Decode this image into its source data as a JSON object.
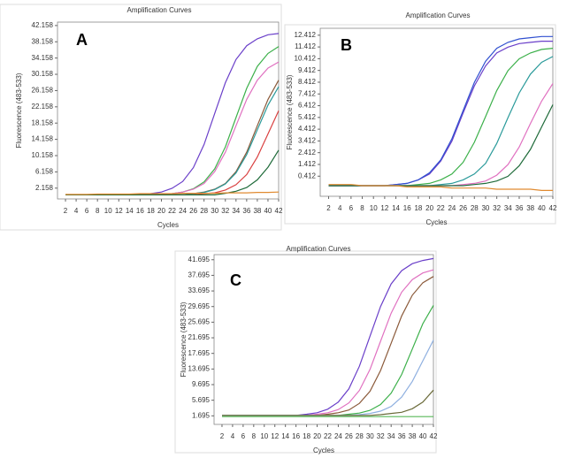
{
  "chart_data": [
    {
      "type": "line",
      "title": "Amplification Curves",
      "panel_label": "A",
      "x_label": "Cycles",
      "y_label": "Fluorescence (483-533)",
      "x": [
        2,
        4,
        6,
        8,
        10,
        12,
        14,
        16,
        18,
        20,
        22,
        24,
        26,
        28,
        30,
        32,
        34,
        36,
        38,
        40,
        42
      ],
      "xlim": [
        0.5,
        42
      ],
      "xticks": [
        2,
        4,
        6,
        8,
        10,
        12,
        14,
        16,
        18,
        20,
        22,
        24,
        26,
        28,
        30,
        32,
        34,
        36,
        38,
        40,
        42
      ],
      "ylim": [
        -0.5,
        43
      ],
      "yticks": [
        2.158,
        6.158,
        10.158,
        14.158,
        18.158,
        22.158,
        26.158,
        30.158,
        34.158,
        38.158,
        42.158
      ],
      "series": [
        {
          "color": "#6a3fc9",
          "values": [
            0.5,
            0.5,
            0.5,
            0.5,
            0.5,
            0.5,
            0.5,
            0.5,
            0.8,
            1.2,
            2.1,
            3.8,
            7.2,
            12.9,
            20.5,
            28.1,
            33.8,
            37.2,
            38.9,
            39.9,
            40.2
          ]
        },
        {
          "color": "#3cb04a",
          "values": [
            0.5,
            0.5,
            0.5,
            0.5,
            0.5,
            0.5,
            0.5,
            0.5,
            0.5,
            0.5,
            0.8,
            1.2,
            2.0,
            3.7,
            6.9,
            12.3,
            19.5,
            26.7,
            32.1,
            35.3,
            37.0
          ]
        },
        {
          "color": "#e070c0",
          "values": [
            0.5,
            0.5,
            0.5,
            0.5,
            0.5,
            0.5,
            0.5,
            0.5,
            0.5,
            0.5,
            0.8,
            1.2,
            1.9,
            3.3,
            6.2,
            11.0,
            17.5,
            24.0,
            28.7,
            31.7,
            33.2
          ]
        },
        {
          "color": "#8b5a3a",
          "values": [
            0.5,
            0.5,
            0.5,
            0.5,
            0.5,
            0.5,
            0.5,
            0.5,
            0.5,
            0.5,
            0.5,
            0.5,
            0.8,
            1.2,
            1.9,
            3.3,
            6.2,
            11.0,
            17.5,
            24.0,
            28.7
          ]
        },
        {
          "color": "#2a9a9a",
          "values": [
            0.5,
            0.5,
            0.5,
            0.5,
            0.5,
            0.5,
            0.5,
            0.5,
            0.5,
            0.5,
            0.5,
            0.5,
            0.8,
            1.1,
            1.8,
            3.2,
            5.9,
            10.4,
            16.5,
            22.6,
            27.1
          ]
        },
        {
          "color": "#d94040",
          "values": [
            0.5,
            0.5,
            0.5,
            0.5,
            0.5,
            0.5,
            0.5,
            0.5,
            0.5,
            0.5,
            0.5,
            0.5,
            0.5,
            0.8,
            1.0,
            1.7,
            3.0,
            5.5,
            9.8,
            15.5,
            21.2
          ]
        },
        {
          "color": "#1f6b3a",
          "values": [
            0.5,
            0.5,
            0.5,
            0.5,
            0.5,
            0.5,
            0.5,
            0.5,
            0.5,
            0.5,
            0.5,
            0.5,
            0.5,
            0.5,
            0.5,
            0.9,
            1.4,
            2.3,
            4.2,
            7.3,
            11.5
          ]
        },
        {
          "color": "#e08a30",
          "values": [
            0.6,
            0.6,
            0.6,
            0.7,
            0.7,
            0.7,
            0.7,
            0.8,
            0.8,
            0.8,
            0.8,
            0.9,
            0.9,
            0.9,
            0.9,
            1.0,
            1.0,
            1.0,
            1.1,
            1.1,
            1.2
          ]
        }
      ]
    },
    {
      "type": "line",
      "title": "Amplification Curves",
      "panel_label": "B",
      "x_label": "Cycles",
      "y_label": "Fluorescence (483-533)",
      "x": [
        2,
        4,
        6,
        8,
        10,
        12,
        14,
        16,
        18,
        20,
        22,
        24,
        26,
        28,
        30,
        32,
        34,
        36,
        38,
        40,
        42
      ],
      "xlim": [
        0.5,
        42
      ],
      "xticks": [
        2,
        4,
        6,
        8,
        10,
        12,
        14,
        16,
        18,
        20,
        22,
        24,
        26,
        28,
        30,
        32,
        34,
        36,
        38,
        40,
        42
      ],
      "ylim": [
        -1.3,
        13
      ],
      "yticks": [
        0.412,
        1.412,
        2.412,
        3.412,
        4.412,
        5.412,
        6.412,
        7.412,
        8.412,
        9.412,
        10.412,
        11.412,
        12.412
      ],
      "series": [
        {
          "color": "#6a3fc9",
          "values": [
            -0.4,
            -0.4,
            -0.4,
            -0.4,
            -0.4,
            -0.4,
            -0.3,
            -0.2,
            0.1,
            0.6,
            1.7,
            3.4,
            5.8,
            8.1,
            9.8,
            10.9,
            11.4,
            11.7,
            11.8,
            11.9,
            11.9
          ]
        },
        {
          "color": "#3050d0",
          "values": [
            -0.4,
            -0.4,
            -0.4,
            -0.4,
            -0.4,
            -0.4,
            -0.3,
            -0.2,
            0.1,
            0.7,
            1.8,
            3.6,
            6.0,
            8.4,
            10.2,
            11.3,
            11.8,
            12.1,
            12.2,
            12.3,
            12.3
          ]
        },
        {
          "color": "#3cb04a",
          "values": [
            -0.4,
            -0.4,
            -0.4,
            -0.4,
            -0.4,
            -0.4,
            -0.4,
            -0.4,
            -0.3,
            -0.2,
            0.1,
            0.6,
            1.6,
            3.3,
            5.5,
            7.7,
            9.4,
            10.4,
            10.9,
            11.2,
            11.3
          ]
        },
        {
          "color": "#2a9a9a",
          "values": [
            -0.4,
            -0.4,
            -0.4,
            -0.4,
            -0.4,
            -0.4,
            -0.4,
            -0.4,
            -0.4,
            -0.4,
            -0.3,
            -0.2,
            0.1,
            0.6,
            1.5,
            3.2,
            5.4,
            7.5,
            9.1,
            10.1,
            10.6
          ]
        },
        {
          "color": "#e070c0",
          "values": [
            -0.4,
            -0.4,
            -0.4,
            -0.4,
            -0.4,
            -0.4,
            -0.4,
            -0.4,
            -0.4,
            -0.4,
            -0.4,
            -0.4,
            -0.3,
            -0.2,
            0.0,
            0.5,
            1.4,
            2.9,
            4.9,
            6.8,
            8.3
          ]
        },
        {
          "color": "#1f6b3a",
          "values": [
            -0.4,
            -0.4,
            -0.4,
            -0.4,
            -0.4,
            -0.4,
            -0.4,
            -0.4,
            -0.4,
            -0.4,
            -0.4,
            -0.4,
            -0.4,
            -0.3,
            -0.2,
            0.0,
            0.4,
            1.3,
            2.7,
            4.6,
            6.5
          ]
        },
        {
          "color": "#e08a30",
          "values": [
            -0.3,
            -0.3,
            -0.3,
            -0.4,
            -0.4,
            -0.4,
            -0.4,
            -0.5,
            -0.5,
            -0.5,
            -0.5,
            -0.6,
            -0.6,
            -0.6,
            -0.6,
            -0.7,
            -0.7,
            -0.7,
            -0.7,
            -0.8,
            -0.8
          ]
        }
      ]
    },
    {
      "type": "line",
      "title": "Amplification Curves",
      "panel_label": "C",
      "x_label": "Cycles",
      "y_label": "Fluorescence (483-533)",
      "x": [
        2,
        4,
        6,
        8,
        10,
        12,
        14,
        16,
        18,
        20,
        22,
        24,
        26,
        28,
        30,
        32,
        34,
        36,
        38,
        40,
        42
      ],
      "xlim": [
        0.5,
        42
      ],
      "xticks": [
        2,
        4,
        6,
        8,
        10,
        12,
        14,
        16,
        18,
        20,
        22,
        24,
        26,
        28,
        30,
        32,
        34,
        36,
        38,
        40,
        42
      ],
      "ylim": [
        -0.5,
        43
      ],
      "yticks": [
        1.695,
        5.695,
        9.695,
        13.695,
        17.695,
        21.695,
        25.695,
        29.695,
        33.695,
        37.695,
        41.695
      ],
      "series": [
        {
          "color": "#6a3fc9",
          "values": [
            1.8,
            1.8,
            1.8,
            1.8,
            1.8,
            1.8,
            1.8,
            1.8,
            2.1,
            2.5,
            3.4,
            5.2,
            8.6,
            14.4,
            22.1,
            29.7,
            35.5,
            38.9,
            40.7,
            41.5,
            42.0
          ]
        },
        {
          "color": "#e070c0",
          "values": [
            1.8,
            1.8,
            1.8,
            1.8,
            1.8,
            1.8,
            1.8,
            1.8,
            1.8,
            2.1,
            2.5,
            3.3,
            5.0,
            8.2,
            13.6,
            20.8,
            28.0,
            33.4,
            36.6,
            38.3,
            39.1
          ]
        },
        {
          "color": "#8b5a3a",
          "values": [
            1.8,
            1.8,
            1.8,
            1.8,
            1.8,
            1.8,
            1.8,
            1.8,
            1.8,
            1.8,
            2.1,
            2.5,
            3.2,
            4.9,
            8.0,
            13.3,
            20.3,
            27.3,
            32.6,
            35.8,
            37.4
          ]
        },
        {
          "color": "#3cb04a",
          "values": [
            1.8,
            1.8,
            1.8,
            1.8,
            1.8,
            1.8,
            1.8,
            1.8,
            1.8,
            1.8,
            1.8,
            1.8,
            2.1,
            2.4,
            3.1,
            4.6,
            7.5,
            12.3,
            18.8,
            25.3,
            30.0
          ]
        },
        {
          "color": "#8fb0e0",
          "values": [
            1.8,
            1.8,
            1.8,
            1.8,
            1.8,
            1.8,
            1.8,
            1.8,
            1.8,
            1.8,
            1.8,
            1.8,
            1.8,
            2.0,
            2.3,
            2.9,
            4.1,
            6.5,
            10.5,
            15.8,
            21.1
          ]
        },
        {
          "color": "#6b6b3a",
          "values": [
            1.8,
            1.8,
            1.8,
            1.8,
            1.8,
            1.8,
            1.8,
            1.8,
            1.8,
            1.8,
            1.8,
            1.8,
            1.8,
            1.8,
            1.8,
            2.0,
            2.3,
            2.6,
            3.5,
            5.2,
            8.3
          ]
        },
        {
          "color": "#58b858",
          "values": [
            1.5,
            1.5,
            1.5,
            1.5,
            1.5,
            1.5,
            1.5,
            1.5,
            1.5,
            1.5,
            1.5,
            1.5,
            1.5,
            1.5,
            1.5,
            1.5,
            1.5,
            1.5,
            1.5,
            1.5,
            1.5
          ]
        }
      ]
    }
  ]
}
